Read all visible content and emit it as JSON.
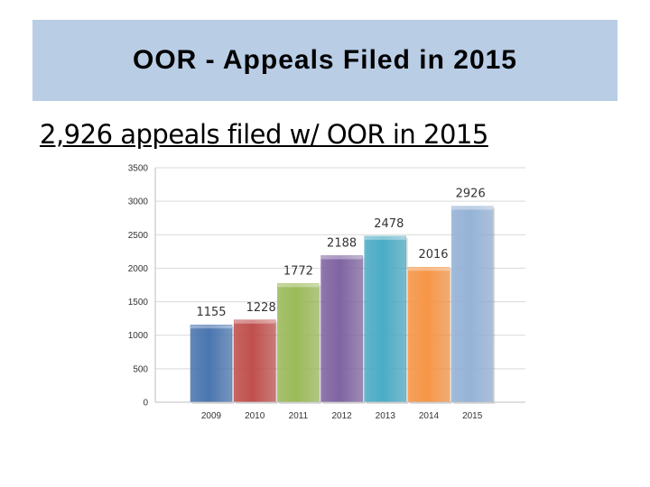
{
  "slide": {
    "title": "OOR - Appeals Filed in 2015",
    "subtitle": "2,926 appeals filed w/ OOR in 2015"
  },
  "chart_data": {
    "type": "bar",
    "categories": [
      "2009",
      "2010",
      "2011",
      "2012",
      "2013",
      "2014",
      "2015"
    ],
    "values": [
      1155,
      1228,
      1772,
      2188,
      2478,
      2016,
      2926
    ],
    "data_labels": [
      "1155",
      "1228",
      "1772",
      "2188",
      "2478",
      "2016",
      "2926"
    ],
    "colors": [
      "#4a76b0",
      "#c0504d",
      "#9bbb59",
      "#8064a2",
      "#4bacc6",
      "#f79646",
      "#95b3d7"
    ],
    "ylim": [
      0,
      3500
    ],
    "yticks": [
      "0",
      "500",
      "1000",
      "1500",
      "2000",
      "2500",
      "3000",
      "3500"
    ],
    "grid": true,
    "legend": "none"
  }
}
